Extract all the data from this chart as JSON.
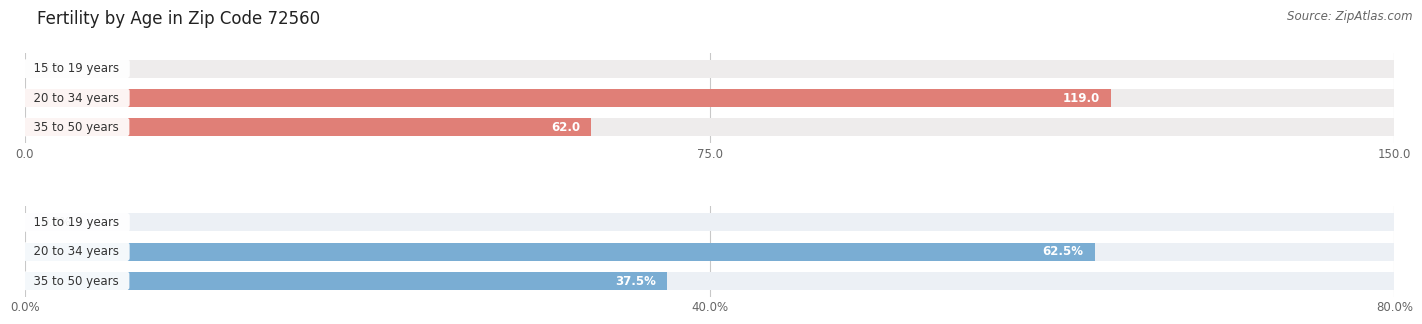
{
  "title": "Fertility by Age in Zip Code 72560",
  "source": "Source: ZipAtlas.com",
  "top_chart": {
    "categories": [
      "15 to 19 years",
      "20 to 34 years",
      "35 to 50 years"
    ],
    "values": [
      0.0,
      119.0,
      62.0
    ],
    "xlim": [
      0,
      150.0
    ],
    "xticks": [
      0.0,
      75.0,
      150.0
    ],
    "xtick_labels": [
      "0.0",
      "75.0",
      "150.0"
    ],
    "bar_color": "#E07F77",
    "bar_bg_color": "#EEECEC",
    "label_inside_color": "#FFFFFF",
    "label_outside_color": "#555555"
  },
  "bottom_chart": {
    "categories": [
      "15 to 19 years",
      "20 to 34 years",
      "35 to 50 years"
    ],
    "values": [
      0.0,
      62.5,
      37.5
    ],
    "xlim": [
      0,
      80.0
    ],
    "xticks": [
      0.0,
      40.0,
      80.0
    ],
    "xtick_labels": [
      "0.0%",
      "40.0%",
      "80.0%"
    ],
    "bar_color": "#7AADD3",
    "bar_bg_color": "#ECF0F5",
    "label_inside_color": "#FFFFFF",
    "label_outside_color": "#555555"
  },
  "bg_color": "#FFFFFF",
  "title_fontsize": 12,
  "source_fontsize": 8.5,
  "label_fontsize": 8.5,
  "tick_fontsize": 8.5,
  "category_fontsize": 8.5
}
